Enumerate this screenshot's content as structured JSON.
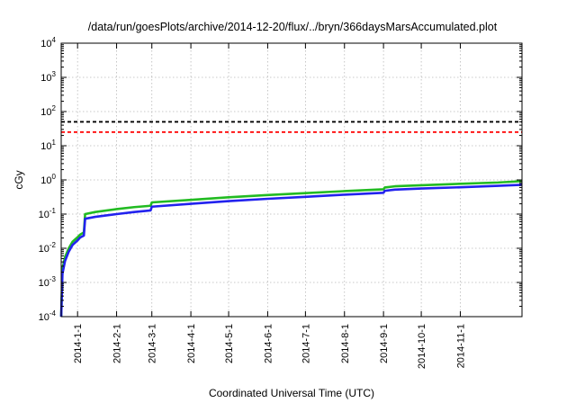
{
  "chart_data": {
    "type": "line",
    "title": "/data/run/goesPlots/archive/2014-12-20/flux/../bryn/366daysMarsAccumulated.plot",
    "xlabel": "Coordinated Universal Time (UTC)",
    "ylabel": "cGy",
    "y_scale": "log",
    "ylim": [
      0.0001,
      10000
    ],
    "xlim": [
      "2013-12-19",
      "2014-12-20"
    ],
    "x_ticks": [
      "2014-1-1",
      "2014-2-1",
      "2014-3-1",
      "2014-4-1",
      "2014-5-1",
      "2014-6-1",
      "2014-7-1",
      "2014-8-1",
      "2014-9-1",
      "2014-10-1",
      "2014-11-1"
    ],
    "y_ticks": [
      {
        "value": 0.0001,
        "base": "10",
        "exp": "-4"
      },
      {
        "value": 0.001,
        "base": "10",
        "exp": "-3"
      },
      {
        "value": 0.01,
        "base": "10",
        "exp": "-2"
      },
      {
        "value": 0.1,
        "base": "10",
        "exp": "-1"
      },
      {
        "value": 1,
        "base": "10",
        "exp": "0"
      },
      {
        "value": 10,
        "base": "10",
        "exp": "1"
      },
      {
        "value": 100,
        "base": "10",
        "exp": "2"
      },
      {
        "value": 1000,
        "base": "10",
        "exp": "3"
      },
      {
        "value": 10000,
        "base": "10",
        "exp": "4"
      }
    ],
    "grid": true,
    "reference_lines": [
      {
        "value": 50,
        "color": "#000000",
        "style": "dashed"
      },
      {
        "value": 25,
        "color": "#ff0000",
        "style": "dashed"
      }
    ],
    "series": [
      {
        "color": "#22bb22",
        "points": [
          [
            "2013-12-19",
            0.0001
          ],
          [
            "2013-12-20",
            0.0025
          ],
          [
            "2013-12-22",
            0.0055
          ],
          [
            "2013-12-25",
            0.01
          ],
          [
            "2013-12-28",
            0.0155
          ],
          [
            "2014-01-01",
            0.021
          ],
          [
            "2014-01-03",
            0.025
          ],
          [
            "2014-01-06",
            0.029
          ],
          [
            "2014-01-07",
            0.1
          ],
          [
            "2014-01-15",
            0.115
          ],
          [
            "2014-02-01",
            0.14
          ],
          [
            "2014-02-15",
            0.16
          ],
          [
            "2014-02-28",
            0.175
          ],
          [
            "2014-03-01",
            0.22
          ],
          [
            "2014-04-01",
            0.26
          ],
          [
            "2014-05-01",
            0.31
          ],
          [
            "2014-06-01",
            0.36
          ],
          [
            "2014-07-01",
            0.41
          ],
          [
            "2014-08-01",
            0.47
          ],
          [
            "2014-09-01",
            0.53
          ],
          [
            "2014-09-02",
            0.6
          ],
          [
            "2014-09-10",
            0.65
          ],
          [
            "2014-10-01",
            0.7
          ],
          [
            "2014-11-01",
            0.77
          ],
          [
            "2014-12-01",
            0.84
          ],
          [
            "2014-12-20",
            0.92
          ]
        ]
      },
      {
        "color": "#2222ee",
        "points": [
          [
            "2013-12-19",
            0.0001
          ],
          [
            "2013-12-20",
            0.0018
          ],
          [
            "2013-12-22",
            0.0042
          ],
          [
            "2013-12-25",
            0.008
          ],
          [
            "2013-12-28",
            0.0125
          ],
          [
            "2014-01-01",
            0.017
          ],
          [
            "2014-01-03",
            0.0205
          ],
          [
            "2014-01-06",
            0.0235
          ],
          [
            "2014-01-07",
            0.073
          ],
          [
            "2014-01-15",
            0.083
          ],
          [
            "2014-02-01",
            0.1
          ],
          [
            "2014-02-15",
            0.115
          ],
          [
            "2014-02-28",
            0.128
          ],
          [
            "2014-03-01",
            0.165
          ],
          [
            "2014-04-01",
            0.2
          ],
          [
            "2014-05-01",
            0.24
          ],
          [
            "2014-06-01",
            0.28
          ],
          [
            "2014-07-01",
            0.32
          ],
          [
            "2014-08-01",
            0.37
          ],
          [
            "2014-09-01",
            0.42
          ],
          [
            "2014-09-02",
            0.48
          ],
          [
            "2014-09-10",
            0.52
          ],
          [
            "2014-10-01",
            0.56
          ],
          [
            "2014-11-01",
            0.61
          ],
          [
            "2014-12-01",
            0.67
          ],
          [
            "2014-12-20",
            0.72
          ]
        ]
      }
    ]
  }
}
